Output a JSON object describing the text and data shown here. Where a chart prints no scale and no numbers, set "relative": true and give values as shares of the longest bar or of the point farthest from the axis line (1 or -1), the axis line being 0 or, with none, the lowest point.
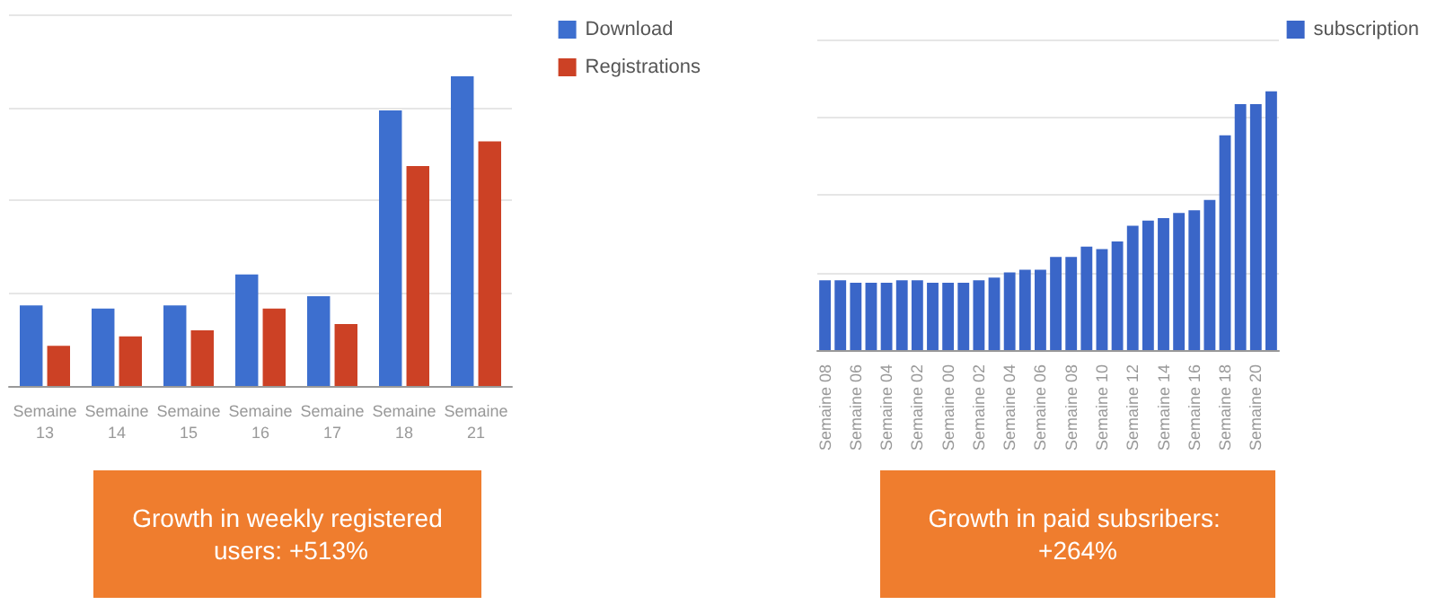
{
  "chart_data": [
    {
      "type": "bar",
      "relative": true,
      "categories": [
        "Semaine 13",
        "Semaine 14",
        "Semaine 15",
        "Semaine 16",
        "Semaine 17",
        "Semaine 18",
        "Semaine 21"
      ],
      "series": [
        {
          "name": "Download",
          "color": "#3d6fcf",
          "values": [
            0.26,
            0.25,
            0.26,
            0.36,
            0.29,
            0.89,
            1
          ]
        },
        {
          "name": "Registrations",
          "color": "#cc4125",
          "values": [
            0.13,
            0.16,
            0.18,
            0.25,
            0.2,
            0.71,
            0.79
          ]
        }
      ],
      "grid": "y",
      "legend": "top right",
      "annotations": [
        "Growth in weekly registered users: +513%"
      ]
    },
    {
      "type": "bar",
      "relative": true,
      "categories": [
        "Semaine 08",
        null,
        "Semaine 06",
        null,
        "Semaine 04",
        null,
        "Semaine 02",
        null,
        "Semaine 00",
        null,
        "Semaine 02",
        null,
        "Semaine 04",
        null,
        "Semaine 06",
        null,
        "Semaine 08",
        null,
        "Semaine 10",
        null,
        "Semaine 12",
        null,
        "Semaine 14",
        null,
        "Semaine 16",
        null,
        "Semaine 18",
        null,
        "Semaine 20",
        null
      ],
      "series": [
        {
          "name": "subscription",
          "color": "#3a66c8",
          "values": [
            0.27,
            0.27,
            0.26,
            0.26,
            0.26,
            0.27,
            0.27,
            0.26,
            0.26,
            0.26,
            0.27,
            0.28,
            0.3,
            0.31,
            0.31,
            0.36,
            0.36,
            0.4,
            0.39,
            0.42,
            0.48,
            0.5,
            0.51,
            0.53,
            0.54,
            0.58,
            0.83,
            0.95,
            0.95,
            1
          ]
        }
      ],
      "grid": "y",
      "legend": "top right",
      "annotations": [
        "Growth in paid subsribers: +264%"
      ]
    }
  ]
}
